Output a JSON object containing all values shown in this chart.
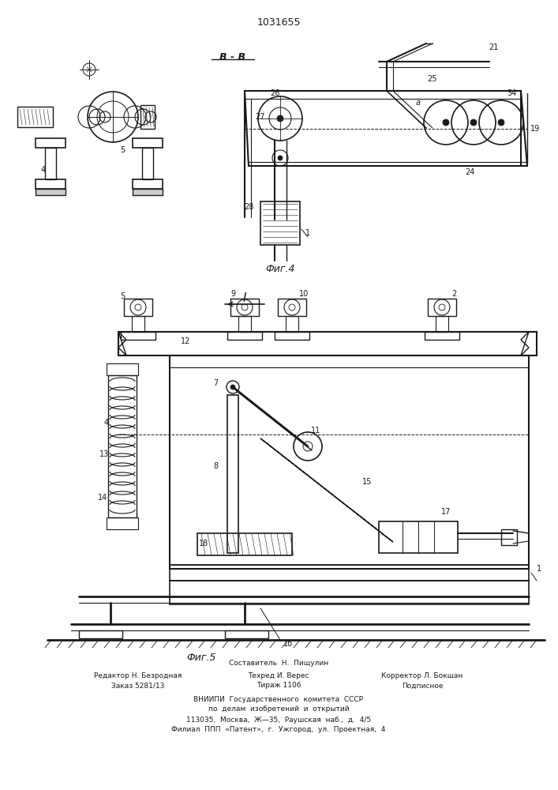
{
  "title": "1031655",
  "bg_color": "#ffffff",
  "line_color": "#1a1a1a",
  "fig4_label": "Фиг.4",
  "fig5_label": "Фиг.5",
  "section_label": "В - В"
}
